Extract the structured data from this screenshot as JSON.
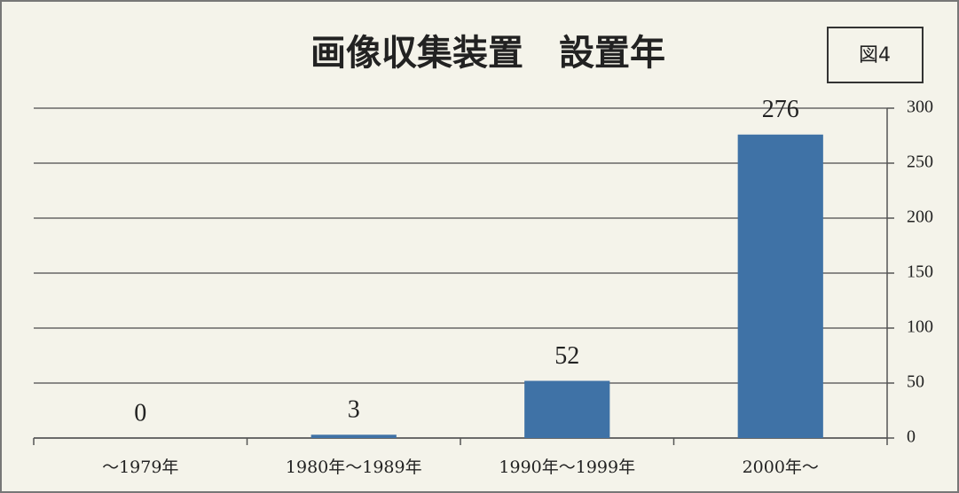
{
  "chart_data": {
    "type": "bar",
    "title": "画像収集装置　設置年",
    "annotation": "図4",
    "categories": [
      "～1979年",
      "1980年～1989年",
      "1990年～1999年",
      "2000年～"
    ],
    "values": [
      0,
      3,
      52,
      276
    ],
    "color": "#3f72a6",
    "ylim": [
      0,
      300
    ],
    "yticks": [
      0,
      50,
      100,
      150,
      200,
      250,
      300
    ],
    "grid": true,
    "y_axis_side": "right"
  }
}
